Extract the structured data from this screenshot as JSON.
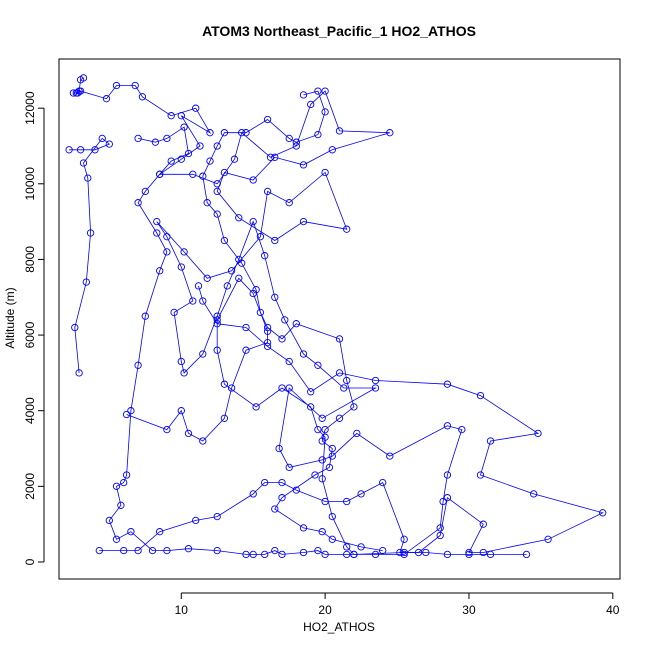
{
  "chart_data": {
    "type": "line",
    "title": "ATOM3 Northeast_Pacific_1 HO2_ATHOS",
    "xlabel": "HO2_ATHOS",
    "ylabel": "Altitude (m)",
    "xlim": [
      1.5,
      40.5
    ],
    "ylim": [
      -450,
      13300
    ],
    "xticks": [
      10,
      20,
      30,
      40
    ],
    "yticks": [
      0,
      2000,
      4000,
      6000,
      8000,
      10000,
      12000
    ],
    "grid": false,
    "legend": "none",
    "markers": "open-circle",
    "color": "#0000ff",
    "series": [
      {
        "points": [
          [
            3.2,
            12800
          ],
          [
            3.0,
            12750
          ],
          [
            2.9,
            12450
          ],
          [
            2.7,
            12400
          ],
          [
            2.5,
            12400
          ],
          [
            2.8,
            12400
          ],
          [
            3.0,
            12450
          ],
          [
            4.8,
            12250
          ],
          [
            5.5,
            12600
          ],
          [
            6.8,
            12600
          ],
          [
            7.3,
            12300
          ],
          [
            9.3,
            11800
          ],
          [
            11.0,
            12000
          ],
          [
            12.0,
            11350
          ],
          [
            10.0,
            11800
          ],
          [
            11.3,
            11000
          ],
          [
            10.0,
            10650
          ],
          [
            8.5,
            10250
          ],
          [
            10.8,
            10250
          ],
          [
            12.5,
            10000
          ],
          [
            13.7,
            10650
          ],
          [
            14.2,
            11350
          ],
          [
            16.2,
            10700
          ],
          [
            18.0,
            11000
          ],
          [
            19.0,
            12100
          ],
          [
            20.0,
            12450
          ],
          [
            21.0,
            11400
          ],
          [
            24.5,
            11350
          ],
          [
            20.5,
            10900
          ],
          [
            18.5,
            10500
          ],
          [
            16.5,
            10700
          ],
          [
            15.0,
            10100
          ],
          [
            13.0,
            10300
          ],
          [
            12.5,
            9800
          ],
          [
            14.0,
            9100
          ],
          [
            16.5,
            8500
          ],
          [
            18.5,
            9000
          ],
          [
            21.5,
            8800
          ],
          [
            20.0,
            10300
          ],
          [
            17.5,
            9500
          ],
          [
            16.0,
            9800
          ],
          [
            15.5,
            8600
          ],
          [
            13.5,
            7700
          ],
          [
            11.8,
            7500
          ],
          [
            10.2,
            8200
          ],
          [
            8.3,
            9000
          ],
          [
            9.0,
            8600
          ],
          [
            10.0,
            7800
          ],
          [
            10.8,
            6900
          ],
          [
            9.5,
            6600
          ],
          [
            10.0,
            5300
          ],
          [
            10.2,
            5000
          ],
          [
            11.5,
            5500
          ],
          [
            12.5,
            6500
          ],
          [
            13.2,
            7300
          ],
          [
            14.0,
            8000
          ],
          [
            15.0,
            9000
          ],
          [
            15.8,
            8100
          ],
          [
            16.5,
            7000
          ],
          [
            17.2,
            6400
          ],
          [
            18.5,
            5500
          ],
          [
            19.5,
            5200
          ],
          [
            21.3,
            4600
          ],
          [
            23.5,
            4600
          ],
          [
            19.8,
            3800
          ],
          [
            17.5,
            4600
          ],
          [
            16.8,
            3000
          ],
          [
            17.5,
            2500
          ],
          [
            19.8,
            2700
          ],
          [
            20.5,
            2800
          ],
          [
            22.2,
            3400
          ],
          [
            24.5,
            2800
          ],
          [
            28.5,
            3600
          ],
          [
            29.5,
            3500
          ],
          [
            28.5,
            2300
          ],
          [
            28.2,
            1600
          ],
          [
            28.0,
            900
          ],
          [
            25.5,
            200
          ],
          [
            23.5,
            200
          ],
          [
            22.0,
            200
          ],
          [
            21.5,
            400
          ],
          [
            20.5,
            1200
          ],
          [
            19.8,
            2200
          ],
          [
            20.0,
            3300
          ],
          [
            19.5,
            3500
          ],
          [
            19.0,
            4100
          ],
          [
            17.0,
            4600
          ],
          [
            15.2,
            4100
          ],
          [
            13.0,
            4700
          ],
          [
            12.5,
            5600
          ],
          [
            12.5,
            6400
          ],
          [
            14.0,
            7500
          ],
          [
            15.0,
            7100
          ],
          [
            16.0,
            6100
          ],
          [
            16.0,
            5800
          ],
          [
            14.5,
            5600
          ],
          [
            13.5,
            4600
          ],
          [
            13.0,
            3800
          ],
          [
            11.5,
            3200
          ],
          [
            10.5,
            3400
          ],
          [
            10.0,
            4000
          ],
          [
            9.0,
            3500
          ],
          [
            6.2,
            3900
          ]
        ]
      },
      {
        "points": [
          [
            2.2,
            10900
          ],
          [
            3.0,
            10900
          ],
          [
            4.0,
            10900
          ],
          [
            5.0,
            11050
          ],
          [
            4.5,
            11200
          ],
          [
            3.2,
            10550
          ],
          [
            3.5,
            10150
          ],
          [
            3.7,
            8700
          ],
          [
            3.4,
            7400
          ],
          [
            2.6,
            6200
          ],
          [
            2.9,
            5000
          ]
        ]
      },
      {
        "points": [
          [
            7.0,
            11200
          ],
          [
            8.2,
            11100
          ],
          [
            9.0,
            11200
          ],
          [
            10.2,
            11500
          ],
          [
            10.5,
            10800
          ],
          [
            9.3,
            10600
          ],
          [
            8.5,
            10250
          ],
          [
            7.5,
            9800
          ],
          [
            7.0,
            9500
          ],
          [
            8.3,
            8700
          ],
          [
            9.0,
            8200
          ],
          [
            8.5,
            7700
          ],
          [
            7.5,
            6500
          ],
          [
            7.0,
            5200
          ],
          [
            6.5,
            4000
          ],
          [
            6.2,
            2300
          ],
          [
            6.0,
            2100
          ],
          [
            5.5,
            2000
          ],
          [
            5.8,
            1500
          ],
          [
            5.0,
            1100
          ],
          [
            5.5,
            600
          ],
          [
            6.5,
            800
          ],
          [
            8.0,
            300
          ],
          [
            9.0,
            300
          ],
          [
            10.5,
            350
          ],
          [
            12.5,
            300
          ],
          [
            14.5,
            200
          ],
          [
            15.0,
            200
          ],
          [
            15.8,
            200
          ],
          [
            16.5,
            300
          ],
          [
            17.0,
            200
          ],
          [
            18.5,
            250
          ],
          [
            19.5,
            300
          ],
          [
            20.0,
            200
          ],
          [
            21.5,
            200
          ],
          [
            22.0,
            200
          ],
          [
            25.5,
            250
          ],
          [
            27.0,
            250
          ],
          [
            28.5,
            200
          ],
          [
            30.0,
            200
          ],
          [
            31.5,
            200
          ],
          [
            34.0,
            200
          ]
        ]
      },
      {
        "points": [
          [
            4.3,
            300
          ],
          [
            6.0,
            300
          ],
          [
            7.0,
            300
          ],
          [
            8.5,
            800
          ],
          [
            11.0,
            1100
          ],
          [
            12.5,
            1200
          ],
          [
            15.0,
            1800
          ],
          [
            15.8,
            2100
          ],
          [
            17.0,
            2100
          ],
          [
            18.0,
            1900
          ],
          [
            20.0,
            1600
          ],
          [
            21.5,
            1600
          ],
          [
            22.5,
            1800
          ],
          [
            24.0,
            2100
          ],
          [
            25.5,
            600
          ],
          [
            25.2,
            250
          ],
          [
            26.5,
            250
          ],
          [
            28.0,
            700
          ],
          [
            28.5,
            1700
          ],
          [
            31.0,
            1000
          ],
          [
            30.0,
            250
          ],
          [
            31.0,
            250
          ],
          [
            35.5,
            600
          ],
          [
            39.3,
            1300
          ],
          [
            34.5,
            1800
          ],
          [
            30.8,
            2300
          ],
          [
            31.5,
            3200
          ],
          [
            34.8,
            3400
          ],
          [
            30.8,
            4400
          ],
          [
            28.5,
            4700
          ],
          [
            23.5,
            4800
          ],
          [
            21.0,
            5000
          ],
          [
            19.0,
            4500
          ],
          [
            17.5,
            5300
          ],
          [
            16.0,
            5700
          ],
          [
            14.5,
            6200
          ],
          [
            12.5,
            6300
          ],
          [
            11.5,
            6900
          ],
          [
            11.2,
            7300
          ]
        ]
      },
      {
        "points": [
          [
            18.5,
            12350
          ],
          [
            19.5,
            12450
          ],
          [
            20.0,
            11900
          ],
          [
            19.5,
            11300
          ],
          [
            18.0,
            11100
          ],
          [
            17.5,
            11200
          ],
          [
            16.0,
            11700
          ],
          [
            14.5,
            11350
          ],
          [
            13.0,
            11350
          ],
          [
            12.5,
            11000
          ],
          [
            12.0,
            10600
          ],
          [
            11.5,
            10200
          ],
          [
            11.8,
            9500
          ],
          [
            12.5,
            9200
          ],
          [
            13.0,
            8500
          ],
          [
            14.2,
            7900
          ],
          [
            15.2,
            7200
          ],
          [
            15.5,
            6600
          ],
          [
            16.0,
            6200
          ],
          [
            17.0,
            5900
          ],
          [
            18.0,
            6300
          ],
          [
            21.0,
            5900
          ],
          [
            21.5,
            4800
          ],
          [
            22.0,
            4100
          ],
          [
            21.0,
            3800
          ],
          [
            20.0,
            3500
          ],
          [
            19.8,
            3200
          ],
          [
            20.5,
            3000
          ],
          [
            20.3,
            2500
          ],
          [
            19.3,
            2300
          ],
          [
            17.0,
            1700
          ],
          [
            16.5,
            1400
          ],
          [
            18.5,
            900
          ],
          [
            19.8,
            800
          ],
          [
            20.5,
            600
          ],
          [
            22.5,
            400
          ],
          [
            24.0,
            300
          ]
        ]
      }
    ]
  }
}
